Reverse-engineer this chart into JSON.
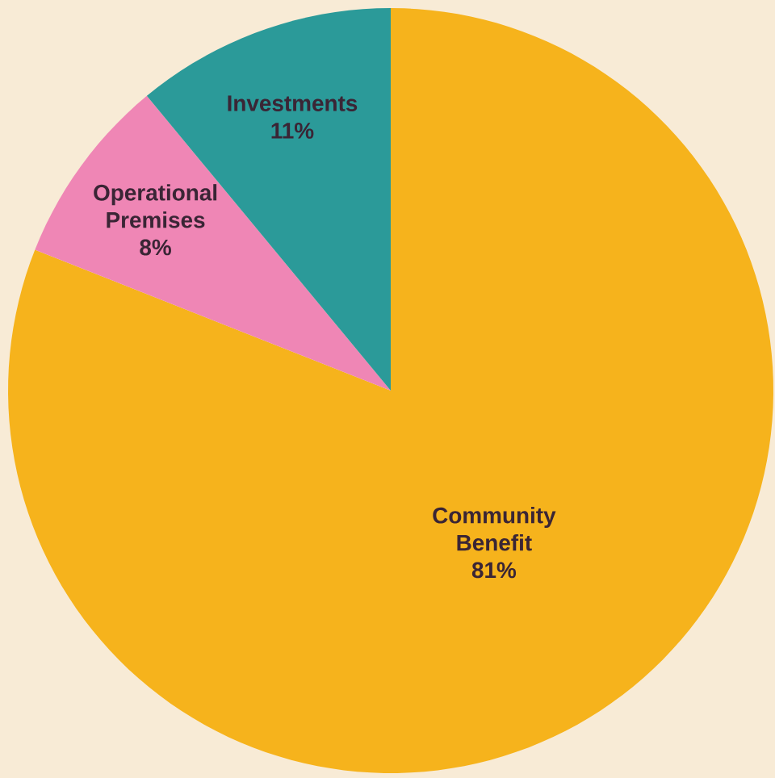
{
  "chart_data": {
    "type": "pie",
    "categories": [
      "Community Benefit",
      "Operational Premises",
      "Investments"
    ],
    "values": [
      81,
      8,
      11
    ],
    "value_labels": [
      "81%",
      "8%",
      "11%"
    ],
    "colors": [
      "#f6b31c",
      "#ef86b5",
      "#2b9a99"
    ]
  }
}
